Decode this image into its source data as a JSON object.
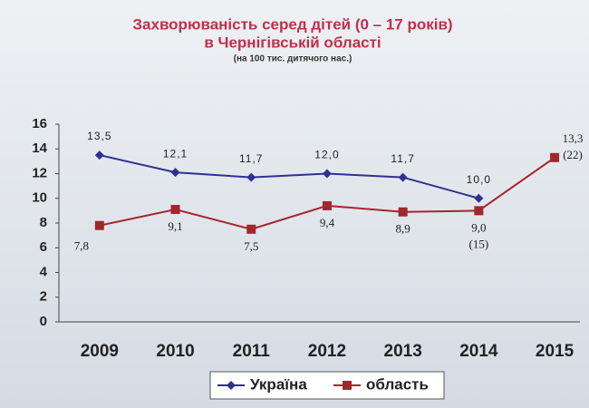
{
  "chart_data": {
    "type": "line",
    "title": "Захворюваність серед дітей (0 – 17 років)",
    "title_line2": "в Чернігівській області",
    "subtitle": "(на 100 тис. дитячого нас.)",
    "categories": [
      "2009",
      "2010",
      "2011",
      "2012",
      "2013",
      "2014",
      "2015"
    ],
    "series": [
      {
        "name": "Україна",
        "color": "#2e3192",
        "marker": "diamond",
        "values": [
          13.5,
          12.1,
          11.7,
          12.0,
          11.7,
          10.0,
          null
        ],
        "value_labels": [
          "13,5",
          "12,1",
          "11,7",
          "12,0",
          "11,7",
          "10,0",
          null
        ]
      },
      {
        "name": "область",
        "color": "#a3262d",
        "marker": "square",
        "values": [
          7.8,
          9.1,
          7.5,
          9.4,
          8.9,
          9.0,
          13.3
        ],
        "value_labels": [
          "7,8",
          "9,1",
          "7,5",
          "9,4",
          "8,9",
          "9,0",
          "13,3"
        ]
      }
    ],
    "annotations": [
      {
        "text": "(15)",
        "x": "2014"
      },
      {
        "text": "(22)",
        "x": "2015"
      }
    ],
    "ylim": [
      0,
      16
    ],
    "yticks": [
      0,
      2,
      4,
      6,
      8,
      10,
      12,
      14,
      16
    ],
    "grid": false,
    "legend": "bottom"
  }
}
